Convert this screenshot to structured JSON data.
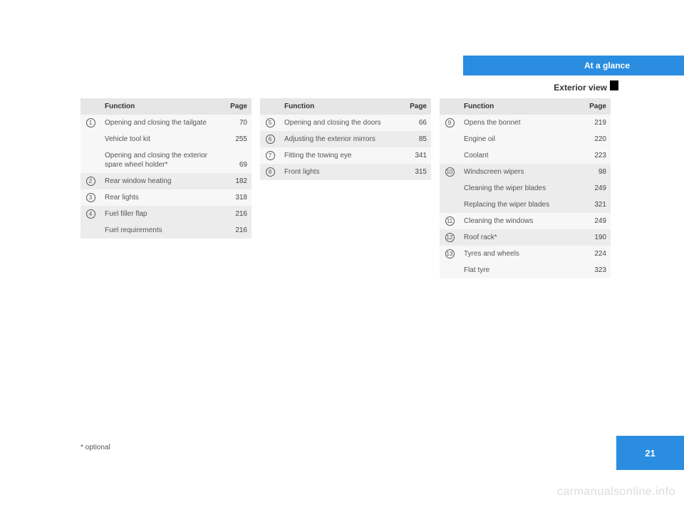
{
  "header": {
    "title": "At a glance"
  },
  "subtitle": "Exterior view",
  "footnote": "* optional",
  "page_number": "21",
  "watermark": "carmanualsonline.info",
  "table_headers": {
    "function": "Function",
    "page": "Page"
  },
  "col1": [
    {
      "num": "1",
      "rows": [
        {
          "text": "Opening and closing the tailgate",
          "page": "70"
        },
        {
          "text": "Vehicle tool kit",
          "page": "255"
        },
        {
          "text": "Opening and closing the exterior spare wheel holder*",
          "page": "69"
        }
      ],
      "shade": "light"
    },
    {
      "num": "2",
      "rows": [
        {
          "text": "Rear window heating",
          "page": "182"
        }
      ],
      "shade": "dark"
    },
    {
      "num": "3",
      "rows": [
        {
          "text": "Rear lights",
          "page": "318"
        }
      ],
      "shade": "light"
    },
    {
      "num": "4",
      "rows": [
        {
          "text": "Fuel filler flap",
          "page": "216"
        },
        {
          "text": "Fuel requirements",
          "page": "216"
        }
      ],
      "shade": "dark"
    }
  ],
  "col2": [
    {
      "num": "5",
      "rows": [
        {
          "text": "Opening and closing the doors",
          "page": "66"
        }
      ],
      "shade": "light"
    },
    {
      "num": "6",
      "rows": [
        {
          "text": "Adjusting the exterior mirrors",
          "page": "85"
        }
      ],
      "shade": "dark"
    },
    {
      "num": "7",
      "rows": [
        {
          "text": "Fitting the towing eye",
          "page": "341"
        }
      ],
      "shade": "light"
    },
    {
      "num": "8",
      "rows": [
        {
          "text": "Front lights",
          "page": "315"
        }
      ],
      "shade": "dark"
    }
  ],
  "col3": [
    {
      "num": "9",
      "rows": [
        {
          "text": "Opens the bonnet",
          "page": "219"
        },
        {
          "text": "Engine oil",
          "page": "220"
        },
        {
          "text": "Coolant",
          "page": "223"
        }
      ],
      "shade": "light"
    },
    {
      "num": "10",
      "rows": [
        {
          "text": "Windscreen wipers",
          "page": "98"
        },
        {
          "text": "Cleaning the wiper blades",
          "page": "249"
        },
        {
          "text": "Replacing the wiper blades",
          "page": "321"
        }
      ],
      "shade": "dark"
    },
    {
      "num": "11",
      "rows": [
        {
          "text": "Cleaning the windows",
          "page": "249"
        }
      ],
      "shade": "light"
    },
    {
      "num": "12",
      "rows": [
        {
          "text": "Roof rack*",
          "page": "190"
        }
      ],
      "shade": "dark"
    },
    {
      "num": "13",
      "rows": [
        {
          "text": "Tyres and wheels",
          "page": "224"
        },
        {
          "text": "Flat tyre",
          "page": "323"
        }
      ],
      "shade": "light"
    }
  ]
}
